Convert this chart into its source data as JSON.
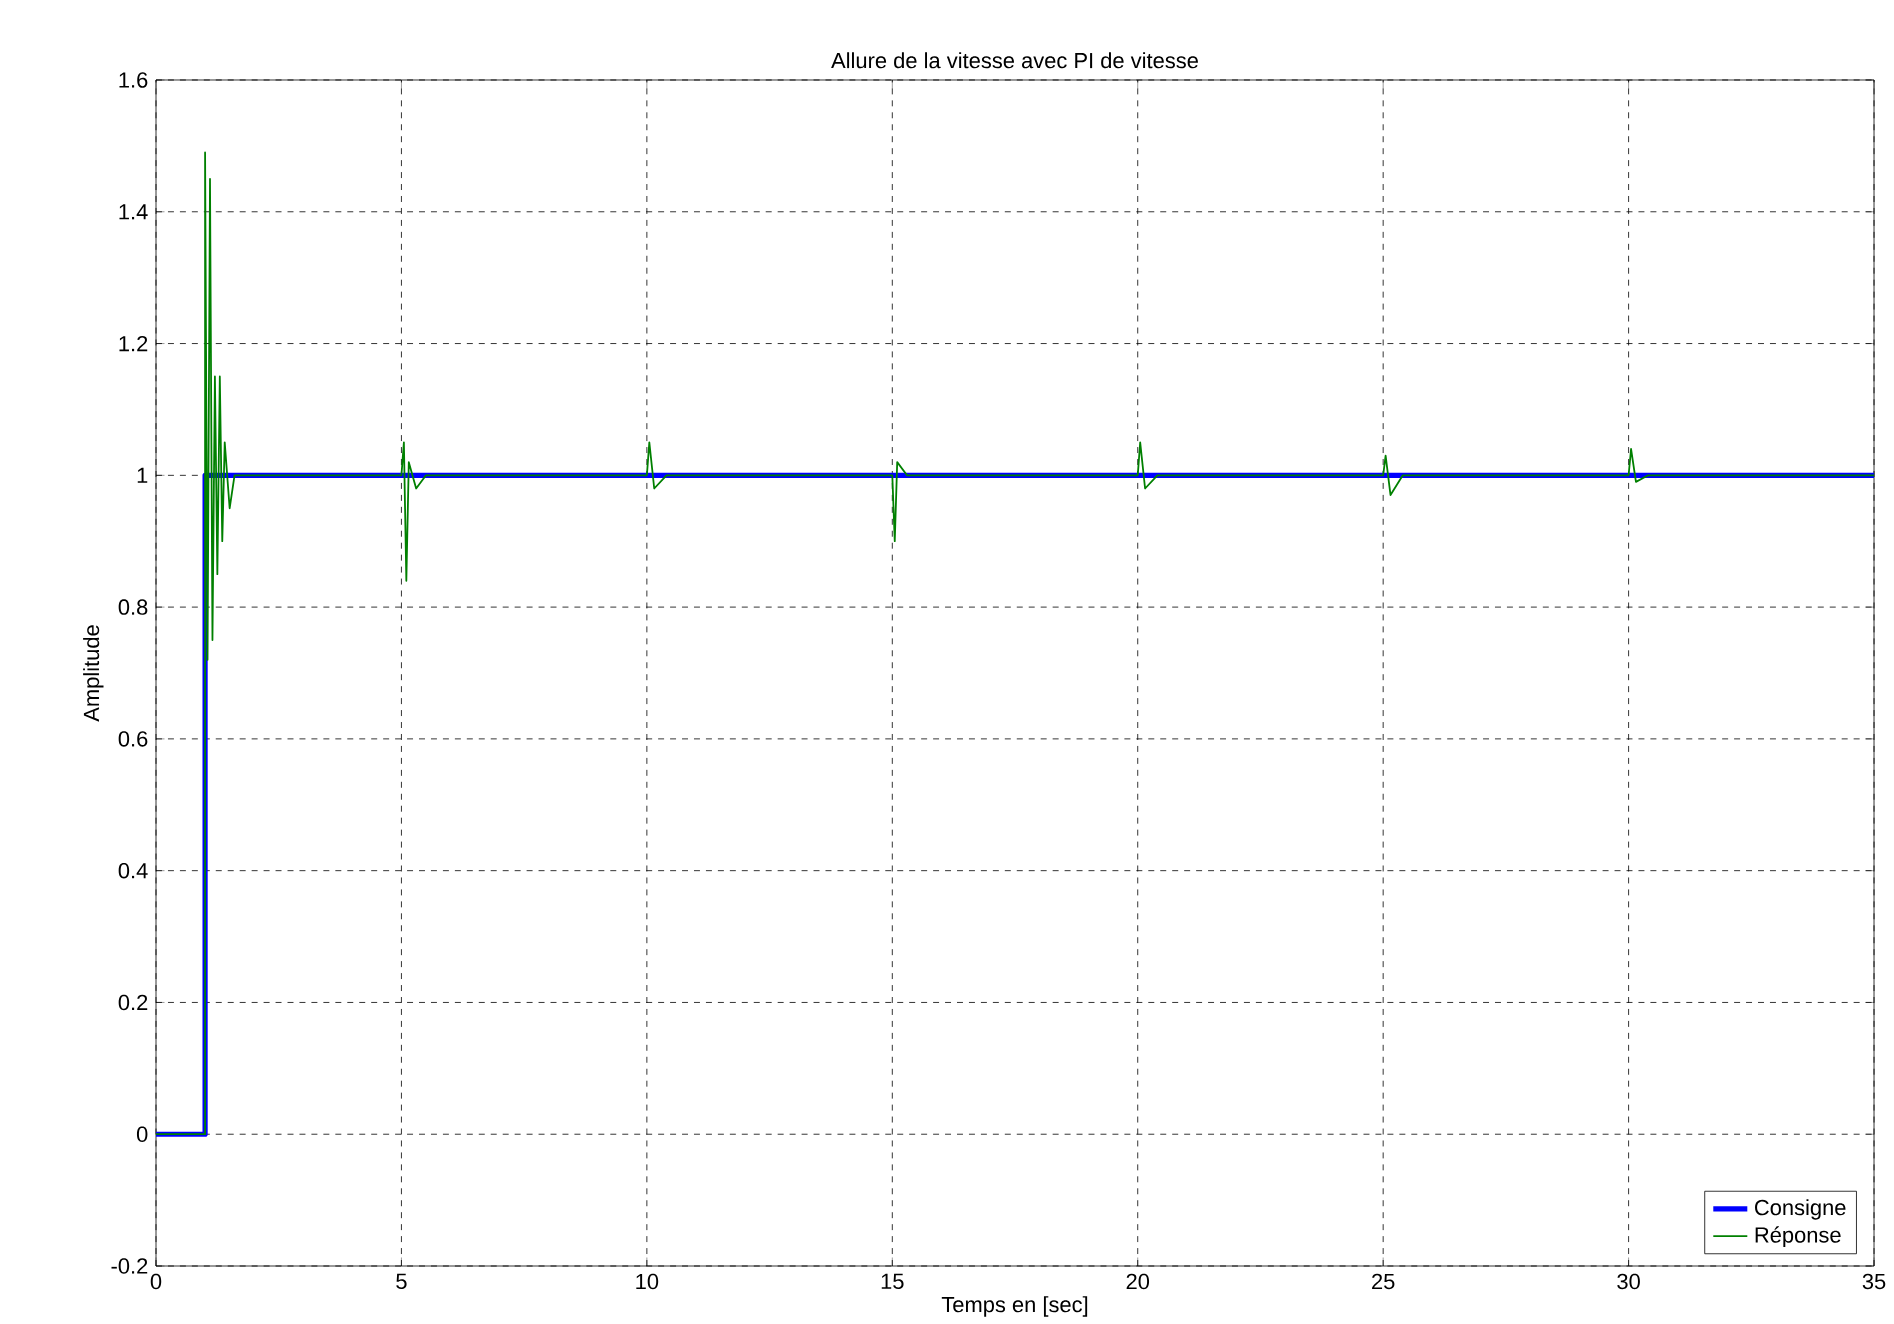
{
  "chart_data": {
    "type": "line",
    "title": "Allure de la vitesse avec PI de vitesse",
    "xlabel": "Temps en [sec]",
    "ylabel": "Amplitude",
    "xlim": [
      0,
      35
    ],
    "ylim": [
      -0.2,
      1.6
    ],
    "xticks": [
      0,
      5,
      10,
      15,
      20,
      25,
      30,
      35
    ],
    "yticks": [
      -0.2,
      0,
      0.2,
      0.4,
      0.6,
      0.8,
      1,
      1.2,
      1.4,
      1.6
    ],
    "grid": true,
    "legend": "bottom right",
    "marker": "none",
    "line_style": "solid",
    "series": [
      {
        "name": "Consigne",
        "color": "#0000ff",
        "x": [
          0,
          1,
          1,
          35
        ],
        "values": [
          0,
          0,
          1,
          1
        ]
      },
      {
        "name": "Réponse",
        "color": "#008000",
        "x": [
          0,
          1,
          1,
          1.05,
          1.1,
          1.15,
          1.2,
          1.25,
          1.3,
          1.35,
          1.4,
          1.5,
          1.6,
          5,
          5.05,
          5.1,
          5.15,
          5.3,
          5.5,
          10,
          10.05,
          10.15,
          10.4,
          15,
          15.05,
          15.1,
          15.3,
          20,
          20.05,
          20.15,
          20.4,
          25,
          25.05,
          25.15,
          25.4,
          30,
          30.05,
          30.15,
          30.4,
          35
        ],
        "values": [
          0,
          0,
          1.49,
          0.72,
          1.45,
          0.75,
          1.15,
          0.85,
          1.15,
          0.9,
          1.05,
          0.95,
          1,
          1,
          1.05,
          0.84,
          1.02,
          0.98,
          1,
          1,
          1.05,
          0.98,
          1,
          1,
          0.9,
          1.02,
          1,
          1,
          1.05,
          0.98,
          1,
          1,
          1.03,
          0.97,
          1,
          1,
          1.04,
          0.99,
          1,
          1
        ]
      }
    ]
  }
}
